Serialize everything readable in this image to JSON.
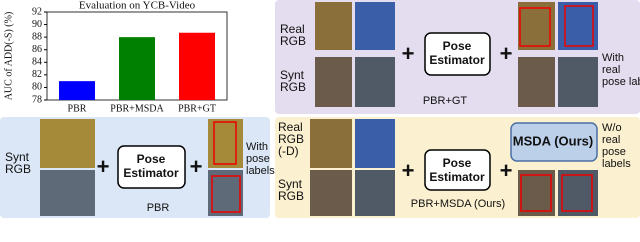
{
  "chart_data": {
    "type": "bar",
    "title": "Evaluation on YCB-Video",
    "y_label": "AUC of ADD(-S) (%)",
    "categories": [
      "PBR",
      "PBR+MSDA",
      "PBR+GT"
    ],
    "values": [
      81,
      88,
      88.7
    ],
    "colors": [
      "#0000ff",
      "#008000",
      "#ff0000"
    ],
    "ylim": [
      78,
      92
    ],
    "yticks": [
      78,
      80,
      82,
      84,
      86,
      88,
      90,
      92
    ]
  },
  "plus": "+",
  "panels": {
    "pbr_gt": {
      "real": [
        "Real",
        "RGB"
      ],
      "synt": [
        "Synt",
        "RGB"
      ],
      "estimator": [
        "Pose",
        "Estimator"
      ],
      "labels": [
        "With",
        "real",
        "pose labels"
      ],
      "caption": "PBR+GT"
    },
    "pbr": {
      "synt": [
        "Synt",
        "RGB"
      ],
      "estimator": [
        "Pose",
        "Estimator"
      ],
      "labels": [
        "With",
        "pose",
        "labels"
      ],
      "caption": "PBR"
    },
    "pbr_msda": {
      "real": [
        "Real",
        "RGB",
        "(-D)"
      ],
      "synt": [
        "Synt",
        "RGB"
      ],
      "estimator": [
        "Pose",
        "Estimator"
      ],
      "msda": "MSDA (Ours)",
      "labels": [
        "W/o",
        "real",
        "pose",
        "labels"
      ],
      "caption": "PBR+MSDA (Ours)"
    }
  }
}
